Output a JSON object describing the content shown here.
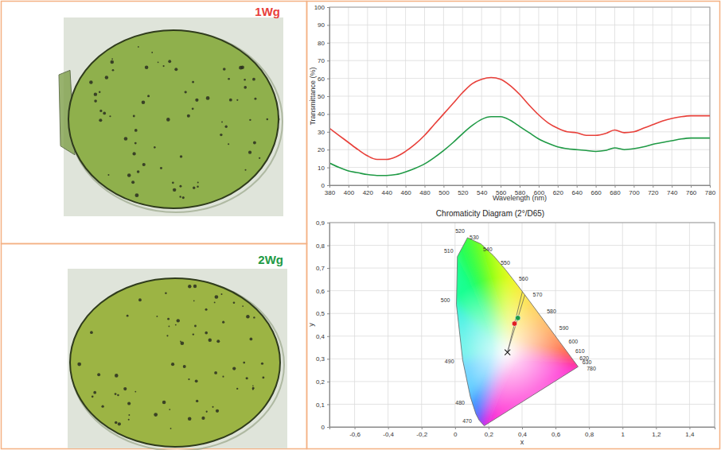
{
  "chart_data": [
    {
      "type": "line",
      "x_label": "Wavelength (nm)",
      "y_label": "Transmittance (%)",
      "x": [
        380,
        390,
        400,
        410,
        420,
        430,
        440,
        450,
        460,
        470,
        480,
        490,
        500,
        510,
        520,
        530,
        540,
        550,
        560,
        570,
        580,
        590,
        600,
        610,
        620,
        630,
        640,
        650,
        660,
        670,
        680,
        690,
        700,
        710,
        720,
        730,
        740,
        750,
        760,
        770,
        780
      ],
      "series": [
        {
          "name": "1Wg",
          "color": "#e8403a",
          "values": [
            32,
            28,
            24,
            20,
            16.5,
            14.5,
            14.5,
            16,
            19,
            23,
            28,
            34,
            40,
            46,
            52,
            57,
            59.5,
            60.5,
            59.5,
            56,
            51,
            45,
            39.5,
            35,
            32,
            30,
            29.5,
            28,
            28,
            29,
            31,
            29.5,
            30,
            32,
            34,
            36,
            37.5,
            38.5,
            39,
            39,
            39
          ]
        },
        {
          "name": "2Wg",
          "color": "#1f9a45",
          "values": [
            12.5,
            10,
            8,
            7,
            6,
            5.5,
            5.5,
            6,
            7.5,
            9.5,
            12,
            15.5,
            19.5,
            24,
            29,
            33.5,
            37,
            38.5,
            38.5,
            36.5,
            33,
            29.5,
            26,
            23.5,
            21.5,
            20.5,
            20,
            19.5,
            19,
            19.5,
            21,
            20,
            20.5,
            21.5,
            23,
            24,
            25,
            26,
            26.5,
            26.5,
            26.5
          ]
        }
      ],
      "xlim": [
        380,
        780
      ],
      "xticks": [
        380,
        400,
        420,
        440,
        460,
        480,
        500,
        520,
        540,
        560,
        580,
        600,
        620,
        640,
        660,
        680,
        700,
        720,
        740,
        760,
        780
      ],
      "ylim": [
        0,
        100
      ],
      "yticks": [
        0,
        10,
        20,
        30,
        40,
        50,
        60,
        70,
        80,
        90,
        100
      ],
      "grid": true
    },
    {
      "type": "scatter",
      "title": "Chromaticity Diagram (2°/D65)",
      "x_label": "x",
      "y_label": "y",
      "xlim": [
        -0.75,
        1.55
      ],
      "xticks": [
        {
          "value": -0.6,
          "label": "-0,6"
        },
        {
          "value": -0.4,
          "label": "-0,4"
        },
        {
          "value": -0.2,
          "label": "-0,2"
        },
        0,
        {
          "value": 0.2,
          "label": "0,2"
        },
        {
          "value": 0.4,
          "label": "0,4"
        },
        {
          "value": 0.6,
          "label": "0,6"
        },
        {
          "value": 0.8,
          "label": "0,8"
        },
        1,
        {
          "value": 1.2,
          "label": "1,2"
        },
        {
          "value": 1.4,
          "label": "1,4"
        }
      ],
      "ylim": [
        0,
        0.9
      ],
      "yticks": [
        0,
        {
          "value": 0.1,
          "label": "0,1"
        },
        {
          "value": 0.2,
          "label": "0,2"
        },
        {
          "value": 0.3,
          "label": "0,3"
        },
        {
          "value": 0.4,
          "label": "0,4"
        },
        {
          "value": 0.5,
          "label": "0,5"
        },
        {
          "value": 0.6,
          "label": "0,6"
        },
        {
          "value": 0.7,
          "label": "0,7"
        },
        {
          "value": 0.8,
          "label": "0,8"
        },
        {
          "value": 0.9,
          "label": "0,9"
        }
      ],
      "grid": true,
      "locus": {
        "x": [
          0.1741,
          0.144,
          0.1241,
          0.0913,
          0.0454,
          0.0082,
          0.0139,
          0.0743,
          0.1547,
          0.2296,
          0.3016,
          0.3731,
          0.4441,
          0.5125,
          0.5752,
          0.627,
          0.6658,
          0.6915,
          0.7079,
          0.7347
        ],
        "y": [
          0.005,
          0.0297,
          0.0578,
          0.1327,
          0.295,
          0.5384,
          0.7502,
          0.8338,
          0.8059,
          0.7543,
          0.6923,
          0.6245,
          0.5547,
          0.4866,
          0.4242,
          0.3725,
          0.334,
          0.3083,
          0.292,
          0.2653
        ],
        "labels": [
          null,
          null,
          "470",
          "480",
          "490",
          "500",
          "510",
          "520",
          "530",
          "540",
          "550",
          "560",
          "570",
          "580",
          "590",
          "600",
          "610",
          "620",
          "630",
          "780"
        ]
      },
      "series": [
        {
          "color": "#e02020",
          "marker": "circle",
          "x": [
            0.355
          ],
          "values": [
            0.455
          ]
        },
        {
          "color": "#1f9a45",
          "marker": "circle",
          "x": [
            0.375
          ],
          "values": [
            0.48
          ]
        },
        {
          "color": "#222222",
          "marker": "x",
          "x": [
            0.313
          ],
          "values": [
            0.329
          ]
        }
      ]
    }
  ]
}
